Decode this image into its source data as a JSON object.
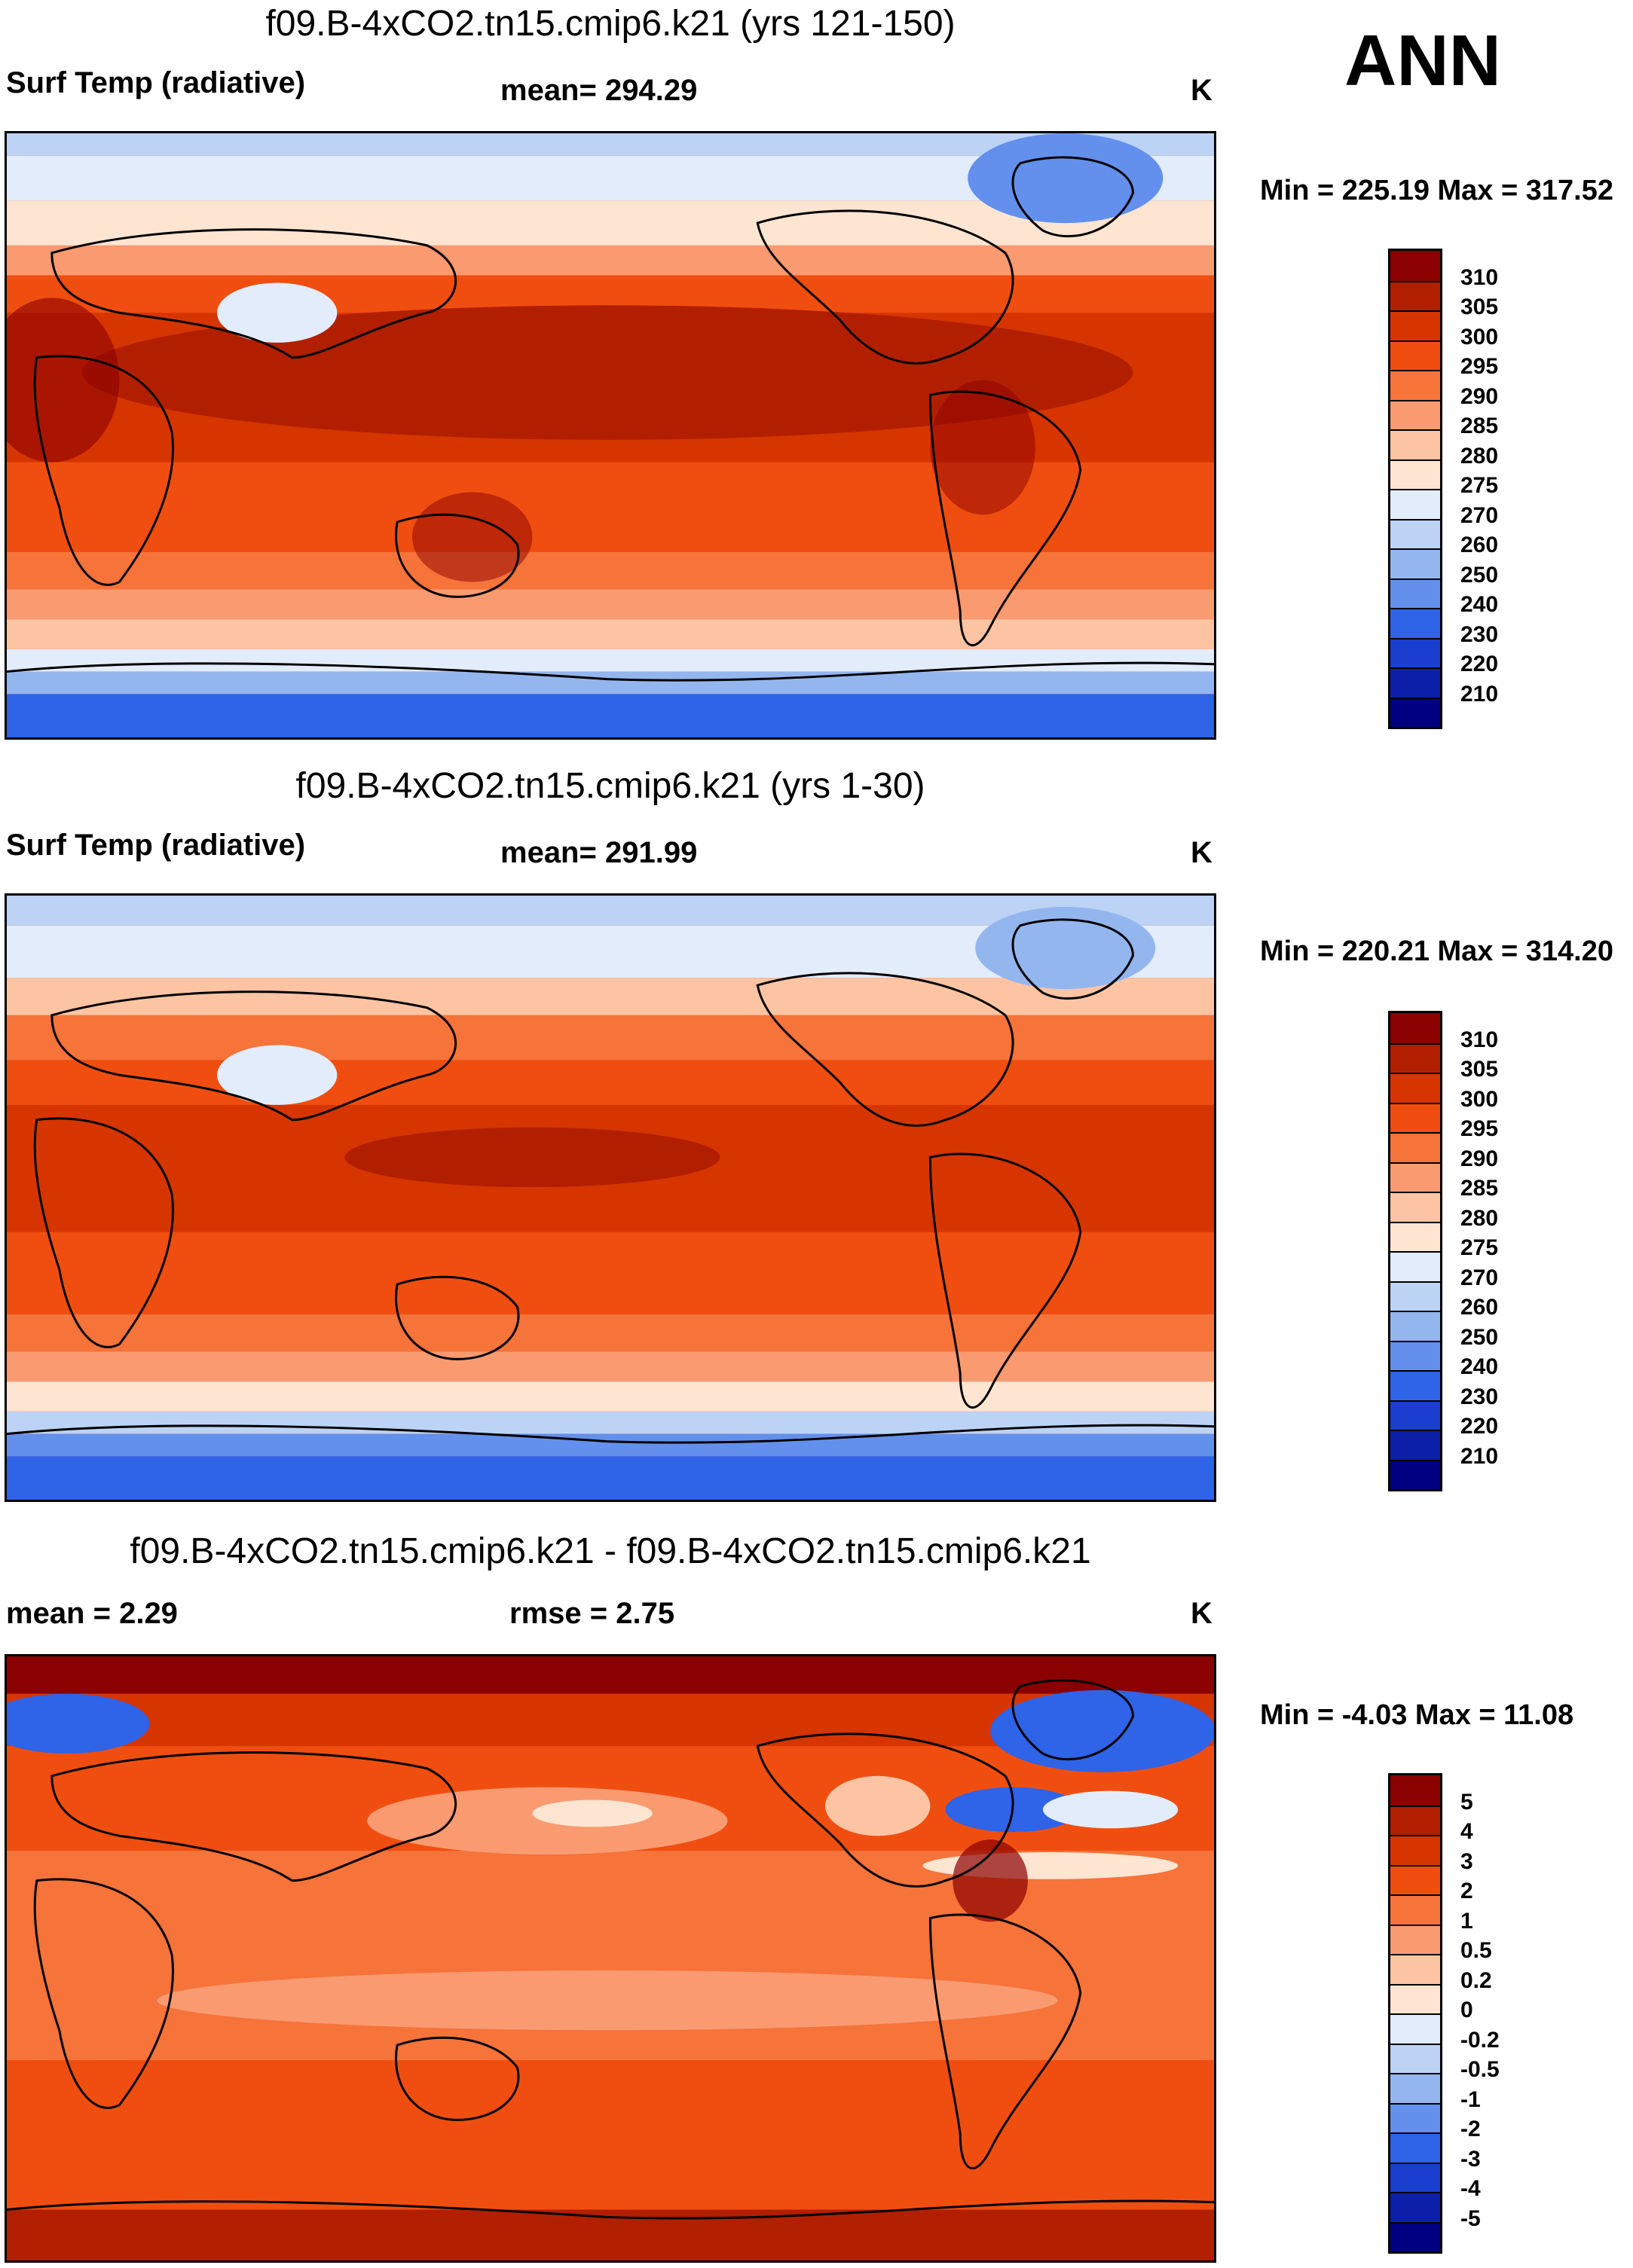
{
  "season": "ANN",
  "units": "K",
  "panels": [
    {
      "id": "top",
      "title": "f09.B-4xCO2.tn15.cmip6.k21 (yrs 121-150)",
      "left_label": "Surf Temp (radiative)",
      "center_label": "mean= 294.29",
      "units": "K",
      "minmax": "Min = 225.19 Max = 317.52",
      "colorbar": {
        "labels": [
          "310",
          "305",
          "300",
          "295",
          "290",
          "285",
          "280",
          "275",
          "270",
          "260",
          "250",
          "240",
          "230",
          "220",
          "210"
        ],
        "colors": [
          "#8b0000",
          "#b21f00",
          "#d63500",
          "#f04e10",
          "#f6733a",
          "#fa9a70",
          "#fdc4a4",
          "#fde5d2",
          "#e2ecfb",
          "#bcd3f5",
          "#94b6ef",
          "#6390ec",
          "#2f63e8",
          "#1a3ed0",
          "#0c1fa8",
          "#000080"
        ]
      }
    },
    {
      "id": "middle",
      "title": "f09.B-4xCO2.tn15.cmip6.k21 (yrs 1-30)",
      "left_label": "Surf Temp (radiative)",
      "center_label": "mean= 291.99",
      "units": "K",
      "minmax": "Min = 220.21 Max = 314.20",
      "colorbar": {
        "labels": [
          "310",
          "305",
          "300",
          "295",
          "290",
          "285",
          "280",
          "275",
          "270",
          "260",
          "250",
          "240",
          "230",
          "220",
          "210"
        ],
        "colors": [
          "#8b0000",
          "#b21f00",
          "#d63500",
          "#f04e10",
          "#f6733a",
          "#fa9a70",
          "#fdc4a4",
          "#fde5d2",
          "#e2ecfb",
          "#bcd3f5",
          "#94b6ef",
          "#6390ec",
          "#2f63e8",
          "#1a3ed0",
          "#0c1fa8",
          "#000080"
        ]
      }
    },
    {
      "id": "bottom",
      "title": "f09.B-4xCO2.tn15.cmip6.k21 - f09.B-4xCO2.tn15.cmip6.k21",
      "left_label": "mean =   2.29",
      "center_label": "rmse =   2.75",
      "units": "K",
      "minmax": "Min =  -4.03 Max =  11.08",
      "colorbar": {
        "labels": [
          "5",
          "4",
          "3",
          "2",
          "1",
          "0.5",
          "0.2",
          "0",
          "-0.2",
          "-0.5",
          "-1",
          "-2",
          "-3",
          "-4",
          "-5"
        ],
        "colors": [
          "#8b0000",
          "#b21f00",
          "#d63500",
          "#f04e10",
          "#f6733a",
          "#fa9a70",
          "#fdc4a4",
          "#fde5d2",
          "#e2ecfb",
          "#bcd3f5",
          "#94b6ef",
          "#6390ec",
          "#2f63e8",
          "#1a3ed0",
          "#0c1fa8",
          "#000080"
        ]
      }
    }
  ]
}
